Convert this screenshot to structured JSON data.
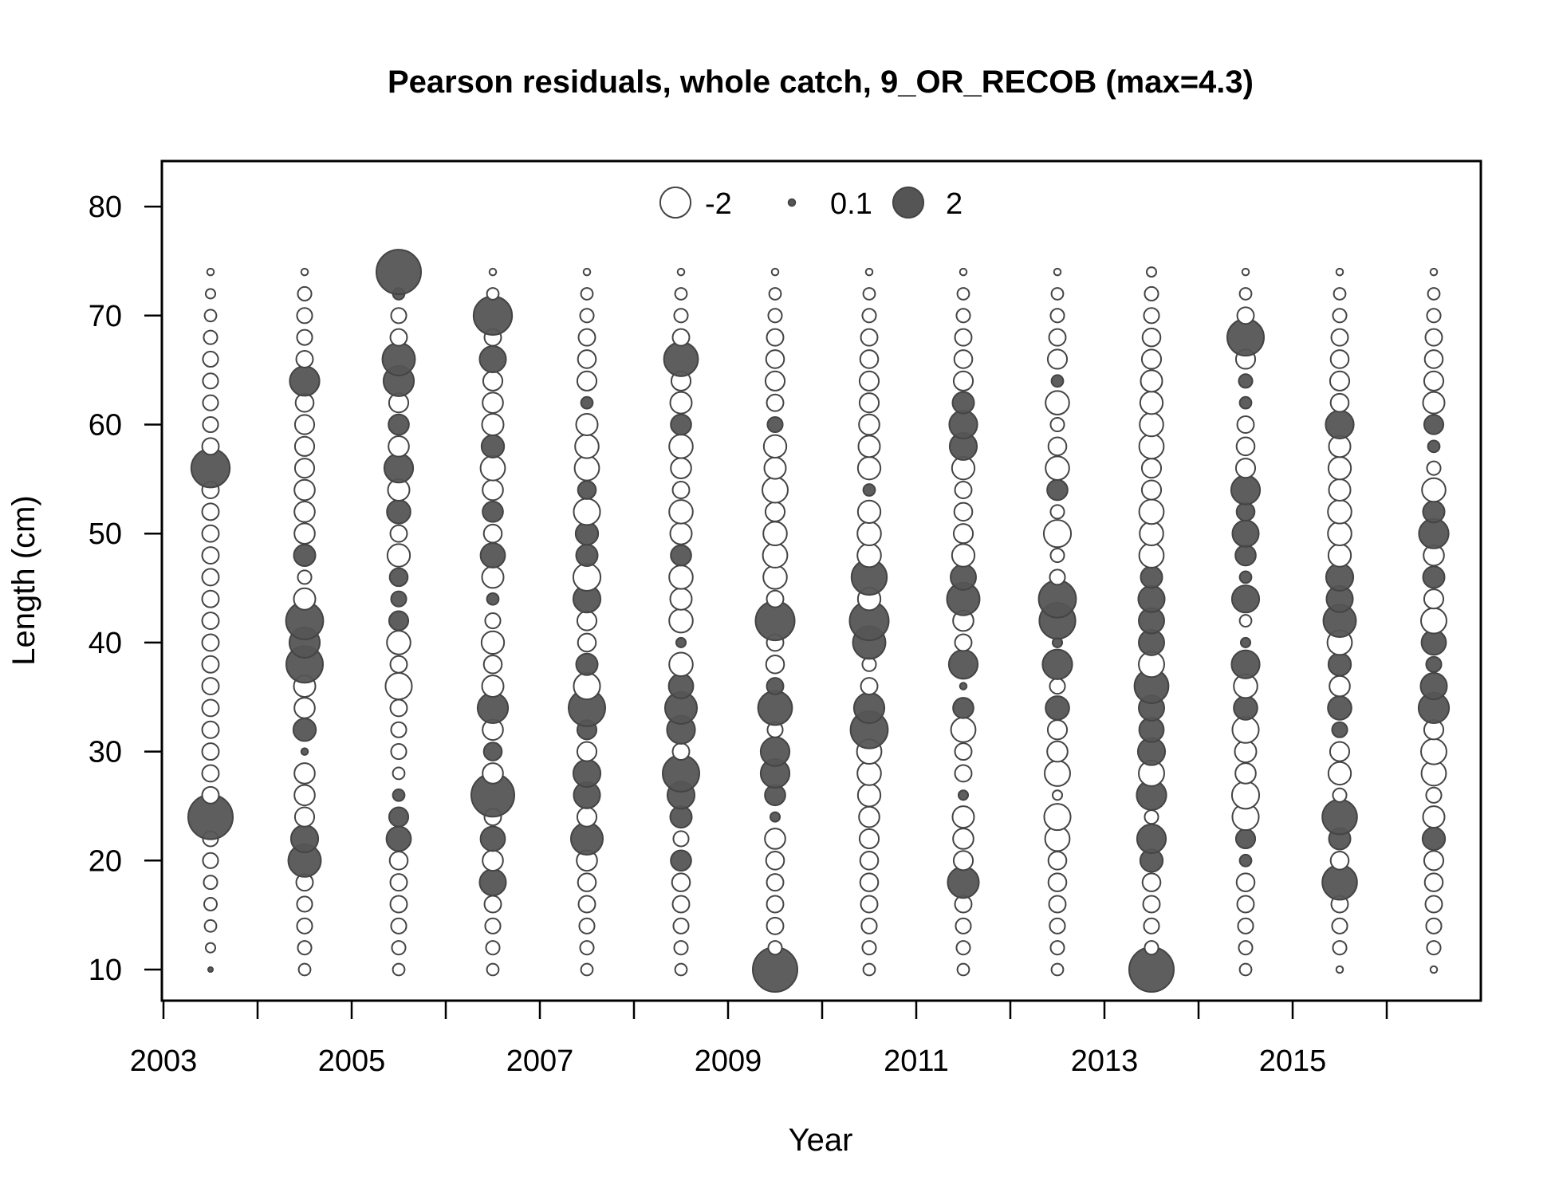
{
  "chart_data": {
    "type": "scatter",
    "subtype": "bubble",
    "title": "Pearson residuals, whole catch, 9_OR_RECOB (max=4.3)",
    "xlabel": "Year",
    "ylabel": "Length (cm)",
    "xlim": [
      2003,
      2017
    ],
    "ylim": [
      10,
      80
    ],
    "x_ticks": [
      2003,
      2004,
      2005,
      2006,
      2007,
      2008,
      2009,
      2010,
      2011,
      2012,
      2013,
      2014,
      2015,
      2016
    ],
    "x_tick_labels": [
      "2003",
      "2005",
      "2007",
      "2009",
      "2011",
      "2013",
      "2015"
    ],
    "y_ticks": [
      10,
      20,
      30,
      40,
      50,
      60,
      70,
      80
    ],
    "y_tick_labels": [
      "10",
      "20",
      "30",
      "40",
      "50",
      "60",
      "70",
      "80"
    ],
    "grid": false,
    "legend": {
      "position": "top-center",
      "items": [
        {
          "label": "-2",
          "value": -2
        },
        {
          "label": "0.1",
          "value": 0.1
        },
        {
          "label": "2",
          "value": 2
        }
      ]
    },
    "colors": {
      "positive_fill": "#555555",
      "negative_fill": "#ffffff",
      "stroke": "#444444"
    },
    "lengths": [
      10,
      12,
      14,
      16,
      18,
      20,
      22,
      24,
      26,
      28,
      30,
      32,
      34,
      36,
      38,
      40,
      42,
      44,
      46,
      48,
      50,
      52,
      54,
      56,
      58,
      60,
      62,
      64,
      66,
      68,
      70,
      72,
      74
    ],
    "series": [
      {
        "year": 2003.5,
        "residuals": [
          0.05,
          -0.2,
          -0.3,
          -0.35,
          -0.4,
          -0.5,
          -0.5,
          4.3,
          -0.6,
          -0.6,
          -0.6,
          -0.6,
          -0.6,
          -0.6,
          -0.6,
          -0.6,
          -0.6,
          -0.6,
          -0.6,
          -0.6,
          -0.6,
          -0.6,
          -0.6,
          3.2,
          -0.6,
          -0.5,
          -0.5,
          -0.5,
          -0.5,
          -0.4,
          -0.3,
          -0.2,
          -0.1
        ]
      },
      {
        "year": 2004.5,
        "residuals": [
          -0.3,
          -0.4,
          -0.5,
          -0.5,
          -0.6,
          2.3,
          1.6,
          -0.8,
          -0.9,
          -0.9,
          0.1,
          1.1,
          -0.9,
          -1.0,
          2.9,
          2.0,
          3.0,
          -1.0,
          -0.4,
          1.0,
          -0.9,
          -0.9,
          -0.9,
          -0.8,
          -0.8,
          -0.8,
          -0.7,
          1.9,
          -0.6,
          -0.5,
          -0.5,
          -0.4,
          -0.1
        ]
      },
      {
        "year": 2005.5,
        "residuals": [
          -0.3,
          -0.4,
          -0.5,
          -0.6,
          -0.6,
          -0.7,
          1.3,
          0.8,
          0.3,
          -0.3,
          -0.5,
          -0.5,
          -0.6,
          -1.5,
          -0.6,
          -1.2,
          0.8,
          0.5,
          0.7,
          -1.1,
          -0.6,
          1.2,
          -1.0,
          1.8,
          -0.9,
          0.9,
          -0.8,
          2.0,
          2.3,
          -0.6,
          -0.5,
          0.3,
          4.3
        ]
      },
      {
        "year": 2006.5,
        "residuals": [
          -0.3,
          -0.4,
          -0.5,
          -0.6,
          1.5,
          -0.9,
          1.3,
          -0.6,
          4.0,
          -0.9,
          0.7,
          -0.9,
          2.0,
          -1.0,
          -0.7,
          -1.1,
          -0.5,
          0.3,
          -1.0,
          1.3,
          -0.7,
          0.9,
          -0.9,
          -1.3,
          1.1,
          -1.0,
          -0.9,
          -0.8,
          1.5,
          -0.6,
          3.2,
          -0.3,
          -0.1
        ]
      },
      {
        "year": 2007.5,
        "residuals": [
          -0.3,
          -0.4,
          -0.5,
          -0.6,
          -0.7,
          -0.9,
          2.2,
          -0.8,
          1.5,
          1.6,
          -0.8,
          0.8,
          2.9,
          -1.5,
          1.0,
          -0.7,
          -0.8,
          1.6,
          -1.6,
          1.0,
          1.1,
          -1.5,
          0.7,
          -1.3,
          -1.2,
          -1.0,
          0.3,
          -0.8,
          -0.7,
          -0.6,
          -0.4,
          -0.3,
          -0.1
        ]
      },
      {
        "year": 2008.5,
        "residuals": [
          -0.3,
          -0.4,
          -0.5,
          -0.6,
          -0.7,
          0.9,
          -0.5,
          1.0,
          1.6,
          2.9,
          -0.6,
          1.7,
          2.2,
          1.3,
          -1.2,
          0.2,
          -1.2,
          -1.0,
          -1.2,
          0.9,
          -1.0,
          -1.2,
          -0.6,
          -0.9,
          -1.2,
          0.9,
          -1.0,
          -0.8,
          2.5,
          -0.6,
          -0.4,
          -0.3,
          -0.1
        ]
      },
      {
        "year": 2009.5,
        "residuals": [
          4.3,
          -0.4,
          -0.6,
          -0.6,
          -0.6,
          -0.7,
          -0.9,
          0.2,
          0.9,
          1.8,
          1.8,
          -0.5,
          2.5,
          0.6,
          -0.7,
          -0.6,
          3.3,
          -0.6,
          -1.2,
          -1.3,
          -1.2,
          -0.8,
          -1.4,
          -1.0,
          -1.1,
          0.5,
          -0.6,
          -0.8,
          -0.7,
          -0.6,
          -0.4,
          -0.3,
          -0.1
        ]
      },
      {
        "year": 2010.5,
        "residuals": [
          -0.3,
          -0.4,
          -0.5,
          -0.6,
          -0.7,
          -0.7,
          -0.8,
          -0.9,
          -1.1,
          -1.2,
          -1.3,
          3.0,
          2.0,
          -0.6,
          -0.4,
          2.3,
          3.3,
          -1.1,
          2.7,
          -1.2,
          -1.2,
          -1.1,
          0.3,
          -1.1,
          -1.0,
          -0.9,
          -0.8,
          -0.8,
          -0.7,
          -0.6,
          -0.4,
          -0.3,
          -0.1
        ]
      },
      {
        "year": 2011.5,
        "residuals": [
          -0.3,
          -0.4,
          -0.5,
          -0.6,
          2.1,
          -0.8,
          -0.9,
          -1.0,
          0.2,
          -0.6,
          -0.6,
          -1.3,
          0.9,
          0.1,
          1.8,
          -0.6,
          -0.9,
          2.3,
          1.4,
          -1.1,
          -0.8,
          -0.7,
          -0.6,
          -1.1,
          1.6,
          1.7,
          1.0,
          -0.8,
          -0.7,
          -0.6,
          -0.4,
          -0.3,
          -0.1
        ]
      },
      {
        "year": 2012.5,
        "residuals": [
          -0.3,
          -0.4,
          -0.5,
          -0.6,
          -0.7,
          -0.7,
          -1.3,
          -1.5,
          -0.2,
          -1.4,
          -0.9,
          -0.8,
          1.2,
          -0.5,
          1.9,
          0.2,
          2.8,
          3.0,
          -0.5,
          -0.4,
          -1.6,
          -0.4,
          0.9,
          -1.2,
          -0.7,
          -0.4,
          -1.2,
          0.3,
          -0.8,
          -0.6,
          -0.4,
          -0.3,
          -0.1
        ]
      },
      {
        "year": 2013.5,
        "residuals": [
          4.3,
          -0.4,
          -0.5,
          -0.6,
          -0.7,
          1.1,
          1.8,
          -0.4,
          1.9,
          -1.4,
          1.6,
          1.3,
          1.4,
          2.5,
          -1.4,
          1.4,
          1.4,
          1.5,
          1.0,
          -1.3,
          -1.2,
          -1.3,
          -0.8,
          -0.8,
          -1.3,
          -1.2,
          -1.1,
          -1.0,
          -0.8,
          -0.7,
          -0.5,
          -0.4,
          -0.2
        ]
      },
      {
        "year": 2014.5,
        "residuals": [
          -0.3,
          -0.4,
          -0.5,
          -0.6,
          -0.7,
          0.3,
          0.8,
          -1.5,
          -1.6,
          -0.9,
          -1.0,
          -1.5,
          1.2,
          -1.2,
          1.7,
          0.2,
          -0.3,
          1.6,
          0.3,
          0.9,
          1.5,
          0.7,
          1.8,
          -0.8,
          -0.7,
          -0.6,
          0.3,
          0.4,
          -0.8,
          2.9,
          -0.6,
          -0.3,
          -0.1
        ]
      },
      {
        "year": 2015.5,
        "residuals": [
          -0.1,
          -0.4,
          -0.5,
          -0.6,
          2.6,
          -0.7,
          1.0,
          2.6,
          -0.4,
          -1.1,
          -0.8,
          0.5,
          1.2,
          -0.9,
          1.1,
          -1.3,
          2.3,
          1.5,
          1.6,
          -1.1,
          -1.2,
          -1.2,
          -1.0,
          -1.1,
          -1.0,
          1.7,
          -0.7,
          -0.8,
          -0.7,
          -0.6,
          -0.4,
          -0.3,
          -0.1
        ]
      },
      {
        "year": 2016.5,
        "residuals": [
          -0.1,
          -0.4,
          -0.5,
          -0.6,
          -0.7,
          -0.8,
          1.1,
          -1.0,
          -0.5,
          -1.3,
          -1.4,
          -0.8,
          2.0,
          1.5,
          0.5,
          1.3,
          -1.4,
          -0.8,
          1.0,
          -0.9,
          1.9,
          1.0,
          -1.2,
          -0.4,
          0.3,
          0.8,
          -1.0,
          -0.8,
          -0.7,
          -0.6,
          -0.4,
          -0.3,
          -0.1
        ]
      }
    ]
  }
}
